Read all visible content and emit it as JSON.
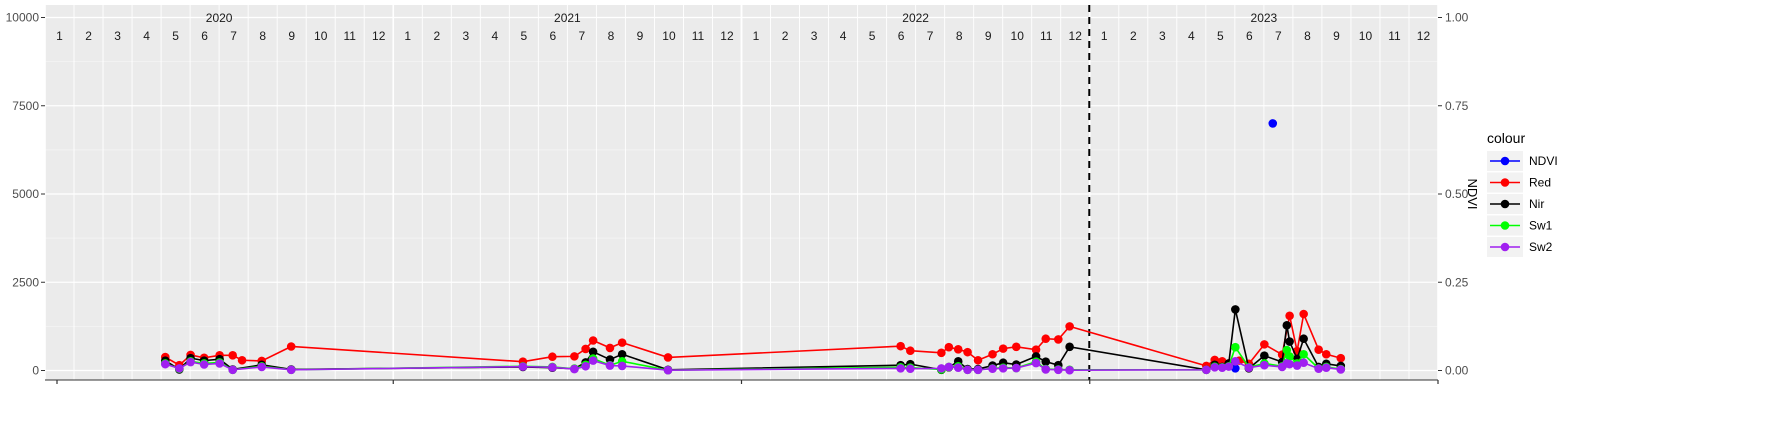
{
  "chart_data": {
    "type": "line",
    "title": "",
    "xlabel": "",
    "ylabel": "",
    "y2label": "NDVI",
    "ylim": [
      0,
      10000
    ],
    "y2lim": [
      0,
      1
    ],
    "yticks": [
      "0",
      "2500",
      "5000",
      "7500",
      "10000"
    ],
    "y2ticks": [
      "0.00",
      "0.25",
      "0.50",
      "0.75",
      "1.00"
    ],
    "grid": true,
    "legend_position": "right",
    "legend_title": "colour",
    "facet_labels": [
      "2020",
      "2021",
      "2022",
      "2023"
    ],
    "month_labels": [
      "1",
      "2",
      "3",
      "4",
      "5",
      "6",
      "7",
      "8",
      "9",
      "10",
      "11",
      "12"
    ],
    "vline_date": "2022-12-31",
    "series": [
      {
        "name": "NDVI",
        "color": "#0000ff",
        "points": [
          [
            "2023-06-01",
            0.006
          ],
          [
            "2023-07-10",
            0.7
          ]
        ]
      },
      {
        "name": "Red",
        "color": "#ff0000",
        "points": [
          [
            "2020-05-05",
            380
          ],
          [
            "2020-05-20",
            150
          ],
          [
            "2020-06-01",
            440
          ],
          [
            "2020-06-15",
            360
          ],
          [
            "2020-07-01",
            430
          ],
          [
            "2020-07-15",
            430
          ],
          [
            "2020-07-25",
            290
          ],
          [
            "2020-08-15",
            270
          ],
          [
            "2020-09-15",
            680
          ],
          [
            "2021-05-15",
            250
          ],
          [
            "2021-06-15",
            390
          ],
          [
            "2021-07-08",
            400
          ],
          [
            "2021-07-20",
            610
          ],
          [
            "2021-07-28",
            850
          ],
          [
            "2021-08-15",
            640
          ],
          [
            "2021-08-28",
            790
          ],
          [
            "2021-10-15",
            370
          ],
          [
            "2022-06-15",
            690
          ],
          [
            "2022-06-25",
            560
          ],
          [
            "2022-07-28",
            500
          ],
          [
            "2022-08-05",
            660
          ],
          [
            "2022-08-15",
            600
          ],
          [
            "2022-08-25",
            520
          ],
          [
            "2022-09-05",
            290
          ],
          [
            "2022-09-20",
            460
          ],
          [
            "2022-10-01",
            620
          ],
          [
            "2022-10-15",
            670
          ],
          [
            "2022-11-05",
            590
          ],
          [
            "2022-11-15",
            900
          ],
          [
            "2022-11-28",
            880
          ],
          [
            "2022-12-10",
            1250
          ],
          [
            "2023-05-01",
            130
          ],
          [
            "2023-05-10",
            300
          ],
          [
            "2023-05-18",
            260
          ],
          [
            "2023-05-25",
            200
          ],
          [
            "2023-06-05",
            280
          ],
          [
            "2023-06-15",
            190
          ],
          [
            "2023-07-01",
            740
          ],
          [
            "2023-07-20",
            450
          ],
          [
            "2023-07-28",
            1550
          ],
          [
            "2023-08-05",
            550
          ],
          [
            "2023-08-12",
            1600
          ],
          [
            "2023-08-28",
            590
          ],
          [
            "2023-09-05",
            460
          ],
          [
            "2023-09-20",
            350
          ]
        ]
      },
      {
        "name": "Nir",
        "color": "#000000",
        "points": [
          [
            "2020-05-05",
            280
          ],
          [
            "2020-05-20",
            30
          ],
          [
            "2020-06-01",
            350
          ],
          [
            "2020-06-15",
            280
          ],
          [
            "2020-07-01",
            320
          ],
          [
            "2020-07-15",
            30
          ],
          [
            "2020-08-15",
            160
          ],
          [
            "2020-09-15",
            30
          ],
          [
            "2021-05-15",
            100
          ],
          [
            "2021-06-15",
            80
          ],
          [
            "2021-07-08",
            50
          ],
          [
            "2021-07-20",
            230
          ],
          [
            "2021-07-28",
            530
          ],
          [
            "2021-08-15",
            310
          ],
          [
            "2021-08-28",
            460
          ],
          [
            "2021-10-15",
            20
          ],
          [
            "2022-06-15",
            150
          ],
          [
            "2022-06-25",
            180
          ],
          [
            "2022-07-28",
            20
          ],
          [
            "2022-08-05",
            90
          ],
          [
            "2022-08-15",
            260
          ],
          [
            "2022-08-25",
            40
          ],
          [
            "2022-09-05",
            40
          ],
          [
            "2022-09-20",
            140
          ],
          [
            "2022-10-01",
            220
          ],
          [
            "2022-10-15",
            170
          ],
          [
            "2022-11-05",
            400
          ],
          [
            "2022-11-15",
            250
          ],
          [
            "2022-11-28",
            150
          ],
          [
            "2022-12-10",
            670
          ],
          [
            "2023-05-01",
            20
          ],
          [
            "2023-05-10",
            160
          ],
          [
            "2023-05-18",
            100
          ],
          [
            "2023-05-25",
            200
          ],
          [
            "2023-06-01",
            1730
          ],
          [
            "2023-06-15",
            60
          ],
          [
            "2023-07-01",
            420
          ],
          [
            "2023-07-20",
            240
          ],
          [
            "2023-07-25",
            1280
          ],
          [
            "2023-07-28",
            820
          ],
          [
            "2023-08-05",
            330
          ],
          [
            "2023-08-12",
            900
          ],
          [
            "2023-08-28",
            100
          ],
          [
            "2023-09-05",
            190
          ],
          [
            "2023-09-20",
            130
          ]
        ]
      },
      {
        "name": "Sw1",
        "color": "#00ff00",
        "points": [
          [
            "2020-05-05",
            200
          ],
          [
            "2020-05-20",
            50
          ],
          [
            "2020-06-01",
            260
          ],
          [
            "2020-06-15",
            200
          ],
          [
            "2020-07-01",
            230
          ],
          [
            "2020-07-15",
            20
          ],
          [
            "2020-08-15",
            120
          ],
          [
            "2020-09-15",
            20
          ],
          [
            "2021-05-15",
            120
          ],
          [
            "2021-06-15",
            100
          ],
          [
            "2021-07-08",
            50
          ],
          [
            "2021-07-20",
            160
          ],
          [
            "2021-07-28",
            340
          ],
          [
            "2021-08-15",
            150
          ],
          [
            "2021-08-28",
            260
          ],
          [
            "2021-10-15",
            10
          ],
          [
            "2022-06-15",
            90
          ],
          [
            "2022-06-25",
            80
          ],
          [
            "2022-07-28",
            30
          ],
          [
            "2022-08-05",
            100
          ],
          [
            "2022-08-15",
            120
          ],
          [
            "2022-08-25",
            20
          ],
          [
            "2022-09-05",
            20
          ],
          [
            "2022-09-20",
            60
          ],
          [
            "2022-10-01",
            80
          ],
          [
            "2022-10-15",
            70
          ],
          [
            "2022-11-05",
            250
          ],
          [
            "2022-11-15",
            40
          ],
          [
            "2022-11-28",
            30
          ],
          [
            "2022-12-10",
            20
          ],
          [
            "2023-05-01",
            20
          ],
          [
            "2023-05-10",
            110
          ],
          [
            "2023-05-18",
            90
          ],
          [
            "2023-05-25",
            120
          ],
          [
            "2023-06-01",
            660
          ],
          [
            "2023-06-15",
            90
          ],
          [
            "2023-07-01",
            200
          ],
          [
            "2023-07-20",
            120
          ],
          [
            "2023-07-25",
            580
          ],
          [
            "2023-07-28",
            400
          ],
          [
            "2023-08-05",
            200
          ],
          [
            "2023-08-12",
            460
          ],
          [
            "2023-08-28",
            60
          ],
          [
            "2023-09-05",
            100
          ],
          [
            "2023-09-20",
            40
          ]
        ]
      },
      {
        "name": "Sw2",
        "color": "#a020f0",
        "points": [
          [
            "2020-05-05",
            180
          ],
          [
            "2020-05-20",
            60
          ],
          [
            "2020-06-01",
            240
          ],
          [
            "2020-06-15",
            170
          ],
          [
            "2020-07-01",
            200
          ],
          [
            "2020-07-15",
            20
          ],
          [
            "2020-08-15",
            100
          ],
          [
            "2020-09-15",
            20
          ],
          [
            "2021-05-15",
            110
          ],
          [
            "2021-06-15",
            90
          ],
          [
            "2021-07-08",
            40
          ],
          [
            "2021-07-20",
            120
          ],
          [
            "2021-07-28",
            280
          ],
          [
            "2021-08-15",
            140
          ],
          [
            "2021-08-28",
            130
          ],
          [
            "2021-10-15",
            10
          ],
          [
            "2022-06-15",
            60
          ],
          [
            "2022-06-25",
            50
          ],
          [
            "2022-07-28",
            60
          ],
          [
            "2022-08-05",
            100
          ],
          [
            "2022-08-15",
            80
          ],
          [
            "2022-08-25",
            20
          ],
          [
            "2022-09-05",
            20
          ],
          [
            "2022-09-20",
            50
          ],
          [
            "2022-10-01",
            60
          ],
          [
            "2022-10-15",
            70
          ],
          [
            "2022-11-05",
            210
          ],
          [
            "2022-11-15",
            30
          ],
          [
            "2022-11-28",
            20
          ],
          [
            "2022-12-10",
            10
          ],
          [
            "2023-05-01",
            20
          ],
          [
            "2023-05-10",
            90
          ],
          [
            "2023-05-18",
            80
          ],
          [
            "2023-05-25",
            110
          ],
          [
            "2023-06-01",
            260
          ],
          [
            "2023-06-15",
            80
          ],
          [
            "2023-07-01",
            150
          ],
          [
            "2023-07-20",
            100
          ],
          [
            "2023-07-25",
            200
          ],
          [
            "2023-07-28",
            180
          ],
          [
            "2023-08-05",
            140
          ],
          [
            "2023-08-12",
            220
          ],
          [
            "2023-08-28",
            50
          ],
          [
            "2023-09-05",
            80
          ],
          [
            "2023-09-20",
            30
          ]
        ]
      }
    ]
  }
}
